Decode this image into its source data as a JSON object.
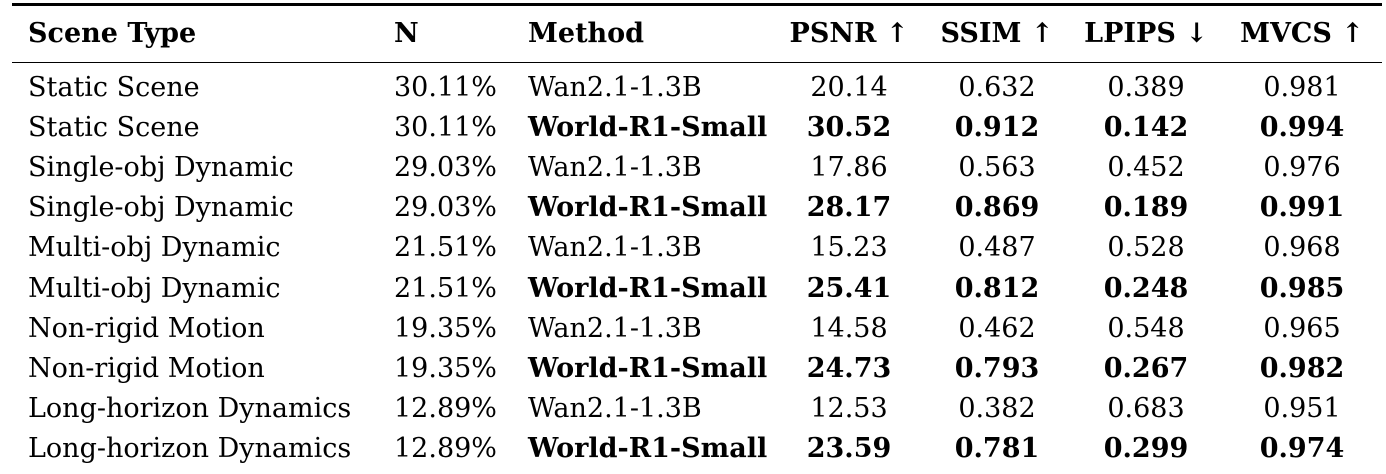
{
  "table": {
    "headers": {
      "scene_type": "Scene Type",
      "n": "N",
      "method": "Method",
      "psnr": "PSNR ↑",
      "ssim": "SSIM ↑",
      "lpips": "LPIPS ↓",
      "mvcs": "MVCS ↑"
    },
    "rows": [
      {
        "scene": "Static Scene",
        "n": "30.11%",
        "method": "Wan2.1-1.3B",
        "psnr": "20.14",
        "ssim": "0.632",
        "lpips": "0.389",
        "mvcs": "0.981",
        "bold": false
      },
      {
        "scene": "Static Scene",
        "n": "30.11%",
        "method": "World-R1-Small",
        "psnr": "30.52",
        "ssim": "0.912",
        "lpips": "0.142",
        "mvcs": "0.994",
        "bold": true
      },
      {
        "scene": "Single-obj Dynamic",
        "n": "29.03%",
        "method": "Wan2.1-1.3B",
        "psnr": "17.86",
        "ssim": "0.563",
        "lpips": "0.452",
        "mvcs": "0.976",
        "bold": false
      },
      {
        "scene": "Single-obj Dynamic",
        "n": "29.03%",
        "method": "World-R1-Small",
        "psnr": "28.17",
        "ssim": "0.869",
        "lpips": "0.189",
        "mvcs": "0.991",
        "bold": true
      },
      {
        "scene": "Multi-obj Dynamic",
        "n": "21.51%",
        "method": "Wan2.1-1.3B",
        "psnr": "15.23",
        "ssim": "0.487",
        "lpips": "0.528",
        "mvcs": "0.968",
        "bold": false
      },
      {
        "scene": "Multi-obj Dynamic",
        "n": "21.51%",
        "method": "World-R1-Small",
        "psnr": "25.41",
        "ssim": "0.812",
        "lpips": "0.248",
        "mvcs": "0.985",
        "bold": true
      },
      {
        "scene": "Non-rigid Motion",
        "n": "19.35%",
        "method": "Wan2.1-1.3B",
        "psnr": "14.58",
        "ssim": "0.462",
        "lpips": "0.548",
        "mvcs": "0.965",
        "bold": false
      },
      {
        "scene": "Non-rigid Motion",
        "n": "19.35%",
        "method": "World-R1-Small",
        "psnr": "24.73",
        "ssim": "0.793",
        "lpips": "0.267",
        "mvcs": "0.982",
        "bold": true
      },
      {
        "scene": "Long-horizon Dynamics",
        "n": "12.89%",
        "method": "Wan2.1-1.3B",
        "psnr": "12.53",
        "ssim": "0.382",
        "lpips": "0.683",
        "mvcs": "0.951",
        "bold": false
      },
      {
        "scene": "Long-horizon Dynamics",
        "n": "12.89%",
        "method": "World-R1-Small",
        "psnr": "23.59",
        "ssim": "0.781",
        "lpips": "0.299",
        "mvcs": "0.974",
        "bold": true
      }
    ]
  }
}
